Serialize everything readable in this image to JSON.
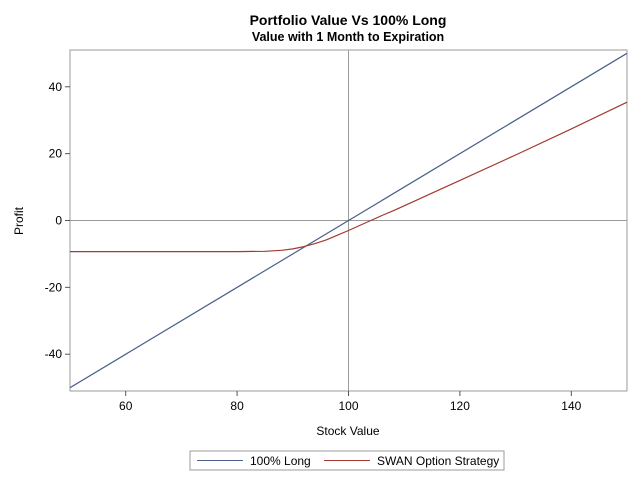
{
  "chart_data": {
    "type": "line",
    "title": "Portfolio Value Vs 100% Long",
    "subtitle": "Value with 1 Month to Expiration",
    "xlabel": "Stock Value",
    "ylabel": "Profit",
    "xlim": [
      50,
      150
    ],
    "ylim": [
      -51,
      51
    ],
    "xticks": [
      60,
      80,
      100,
      120,
      140
    ],
    "yticks": [
      -40,
      -20,
      0,
      20,
      40
    ],
    "reference_lines": {
      "x": 100,
      "y": 0
    },
    "grid": false,
    "legend_position": "bottom",
    "series": [
      {
        "name": "100% Long",
        "color": "#4a5f8c",
        "x": [
          50,
          150
        ],
        "y": [
          -50,
          50
        ]
      },
      {
        "name": "SWAN Option Strategy",
        "color": "#a23a32",
        "x": [
          50,
          60,
          70,
          80,
          85,
          88,
          90,
          92,
          94,
          96,
          98,
          100,
          102,
          104,
          106,
          108,
          110,
          115,
          120,
          130,
          140,
          150
        ],
        "y": [
          -9.3,
          -9.3,
          -9.3,
          -9.3,
          -9.2,
          -8.9,
          -8.5,
          -7.8,
          -6.9,
          -5.8,
          -4.4,
          -3.0,
          -1.5,
          0.0,
          1.5,
          2.9,
          4.4,
          8.2,
          12.0,
          19.6,
          27.4,
          35.4
        ]
      }
    ]
  }
}
